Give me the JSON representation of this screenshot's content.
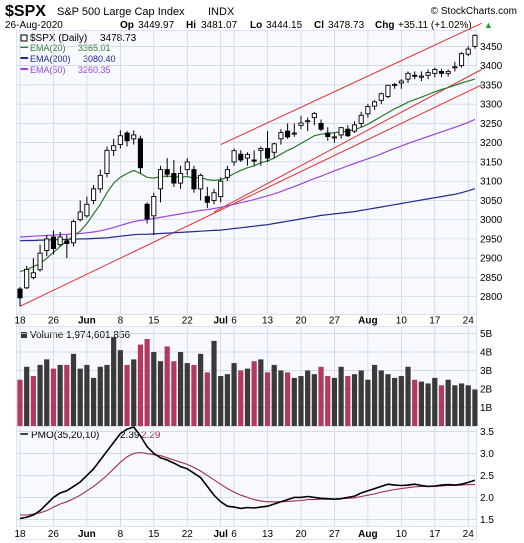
{
  "header": {
    "symbol": "$SPX",
    "name": "S&P 500 Large Cap Index",
    "exchange": "INDX",
    "date": "26-Aug-2020",
    "op_label": "Op",
    "op": "3449.97",
    "hi_label": "Hi",
    "hi": "3481.07",
    "lo_label": "Lo",
    "lo": "3444.15",
    "cl_label": "Cl",
    "cl": "3478.73",
    "chg_label": "Chg",
    "chg": "+35.11 (+1.02%)",
    "chg_arrow": "▲",
    "watermark": "© StockCharts.com"
  },
  "colors": {
    "background": "#ffffff",
    "panel_bg": "#f7f9ff",
    "frame": "#d9e3f3",
    "grid": "#c9d3e0",
    "up_candle": "#ffffff",
    "down_candle": "#000000",
    "ema20": "#2b7a2b",
    "ema200": "#1f2a8a",
    "ema50": "#9b46d6",
    "channel": "#e03030",
    "vol_up": "#3a3a3a",
    "vol_down": "#b33a5e",
    "pmo": "#000000",
    "pmo_signal": "#a0304a"
  },
  "chart_data": [
    {
      "type": "candlestick",
      "title": "$SPX (Daily) 3478.73",
      "legend": [
        {
          "name": "$SPX (Daily)",
          "value": "3478.73"
        },
        {
          "name": "EMA(20)",
          "value": "3365.01",
          "color": "#2b7a2b"
        },
        {
          "name": "EMA(200)",
          "value": "3080.40",
          "color": "#1f2a8a"
        },
        {
          "name": "EMA(50)",
          "value": "3260.35",
          "color": "#9b46d6"
        }
      ],
      "y_ticks": [
        2800,
        2850,
        2900,
        2950,
        3000,
        3050,
        3100,
        3150,
        3200,
        3250,
        3300,
        3350,
        3400,
        3450
      ],
      "ylim": [
        2755,
        3490
      ],
      "x_ticks": [
        {
          "label": "18",
          "i": 0
        },
        {
          "label": "26",
          "i": 5
        },
        {
          "label": "Jun",
          "i": 10
        },
        {
          "label": "8",
          "i": 15
        },
        {
          "label": "15",
          "i": 20
        },
        {
          "label": "22",
          "i": 25
        },
        {
          "label": "Jul",
          "i": 30
        },
        {
          "label": "6",
          "i": 32
        },
        {
          "label": "13",
          "i": 37
        },
        {
          "label": "20",
          "i": 42
        },
        {
          "label": "27",
          "i": 47
        },
        {
          "label": "Aug",
          "i": 52
        },
        {
          "label": "10",
          "i": 57
        },
        {
          "label": "17",
          "i": 62
        },
        {
          "label": "24",
          "i": 67
        }
      ],
      "ohlc": [
        [
          2820,
          2825,
          2775,
          2797
        ],
        [
          2823,
          2880,
          2820,
          2871
        ],
        [
          2850,
          2900,
          2845,
          2862
        ],
        [
          2870,
          2935,
          2865,
          2913
        ],
        [
          2920,
          2960,
          2905,
          2950
        ],
        [
          2955,
          2972,
          2910,
          2925
        ],
        [
          2935,
          2968,
          2930,
          2955
        ],
        [
          2945,
          2960,
          2900,
          2938
        ],
        [
          2940,
          3000,
          2930,
          2995
        ],
        [
          3000,
          3050,
          2995,
          3020
        ],
        [
          3010,
          3060,
          3005,
          3040
        ],
        [
          3050,
          3090,
          3040,
          3080
        ],
        [
          3080,
          3130,
          3070,
          3115
        ],
        [
          3120,
          3190,
          3110,
          3180
        ],
        [
          3180,
          3210,
          3165,
          3192
        ],
        [
          3195,
          3232,
          3185,
          3218
        ],
        [
          3225,
          3230,
          3190,
          3205
        ],
        [
          3210,
          3232,
          3195,
          3220
        ],
        [
          3210,
          3218,
          3120,
          3135
        ],
        [
          3040,
          3045,
          2990,
          3002
        ],
        [
          3010,
          3070,
          2960,
          3060
        ],
        [
          3080,
          3140,
          3045,
          3130
        ],
        [
          3130,
          3160,
          3110,
          3118
        ],
        [
          3120,
          3155,
          3085,
          3095
        ],
        [
          3095,
          3140,
          3080,
          3120
        ],
        [
          3130,
          3160,
          3115,
          3150
        ],
        [
          3130,
          3140,
          3070,
          3080
        ],
        [
          3080,
          3120,
          3050,
          3115
        ],
        [
          3060,
          3085,
          3030,
          3045
        ],
        [
          3050,
          3080,
          3040,
          3070
        ],
        [
          3060,
          3110,
          3045,
          3100
        ],
        [
          3110,
          3140,
          3100,
          3130
        ],
        [
          3150,
          3185,
          3140,
          3179
        ],
        [
          3170,
          3180,
          3150,
          3155
        ],
        [
          3160,
          3175,
          3140,
          3169
        ],
        [
          3155,
          3180,
          3140,
          3152
        ],
        [
          3180,
          3190,
          3140,
          3185
        ],
        [
          3185,
          3230,
          3150,
          3160
        ],
        [
          3175,
          3200,
          3160,
          3197
        ],
        [
          3210,
          3235,
          3195,
          3226
        ],
        [
          3230,
          3250,
          3210,
          3215
        ],
        [
          3225,
          3250,
          3215,
          3225
        ],
        [
          3245,
          3270,
          3235,
          3251
        ],
        [
          3255,
          3265,
          3230,
          3257
        ],
        [
          3265,
          3280,
          3245,
          3276
        ],
        [
          3250,
          3260,
          3230,
          3235
        ],
        [
          3225,
          3240,
          3205,
          3216
        ],
        [
          3215,
          3225,
          3200,
          3215
        ],
        [
          3220,
          3240,
          3210,
          3239
        ],
        [
          3235,
          3245,
          3215,
          3218
        ],
        [
          3230,
          3255,
          3225,
          3246
        ],
        [
          3250,
          3280,
          3240,
          3271
        ],
        [
          3275,
          3300,
          3265,
          3294
        ],
        [
          3295,
          3310,
          3285,
          3306
        ],
        [
          3310,
          3330,
          3300,
          3327
        ],
        [
          3320,
          3350,
          3315,
          3349
        ],
        [
          3350,
          3355,
          3340,
          3351
        ],
        [
          3355,
          3365,
          3340,
          3360
        ],
        [
          3365,
          3385,
          3355,
          3380
        ],
        [
          3375,
          3385,
          3365,
          3373
        ],
        [
          3370,
          3385,
          3360,
          3373
        ],
        [
          3375,
          3390,
          3365,
          3382
        ],
        [
          3380,
          3395,
          3370,
          3390
        ],
        [
          3385,
          3392,
          3370,
          3380
        ],
        [
          3380,
          3390,
          3372,
          3385
        ],
        [
          3395,
          3410,
          3385,
          3397
        ],
        [
          3400,
          3435,
          3395,
          3431
        ],
        [
          3430,
          3450,
          3425,
          3443
        ],
        [
          3449.97,
          3481.07,
          3444.15,
          3478.73
        ]
      ],
      "ema20": [
        2865,
        2870,
        2878,
        2886,
        2900,
        2915,
        2930,
        2945,
        2958,
        2970,
        2990,
        3015,
        3040,
        3070,
        3095,
        3110,
        3120,
        3128,
        3120,
        3110,
        3108,
        3112,
        3113,
        3112,
        3110,
        3112,
        3108,
        3110,
        3104,
        3102,
        3104,
        3110,
        3120,
        3128,
        3135,
        3140,
        3148,
        3152,
        3160,
        3170,
        3180,
        3188,
        3198,
        3208,
        3218,
        3222,
        3224,
        3226,
        3228,
        3230,
        3234,
        3240,
        3248,
        3258,
        3268,
        3278,
        3288,
        3296,
        3305,
        3312,
        3318,
        3325,
        3332,
        3338,
        3343,
        3349,
        3355,
        3360,
        3365.01
      ],
      "ema200": [
        2945,
        2946,
        2946,
        2947,
        2947,
        2948,
        2948,
        2949,
        2949,
        2950,
        2950,
        2951,
        2952,
        2953,
        2955,
        2957,
        2959,
        2961,
        2962,
        2962,
        2963,
        2964,
        2965,
        2966,
        2967,
        2968,
        2969,
        2970,
        2971,
        2972,
        2973,
        2975,
        2977,
        2979,
        2981,
        2983,
        2985,
        2987,
        2990,
        2993,
        2996,
        2999,
        3002,
        3005,
        3008,
        3011,
        3013,
        3015,
        3017,
        3019,
        3021,
        3024,
        3027,
        3030,
        3033,
        3036,
        3039,
        3042,
        3045,
        3048,
        3051,
        3054,
        3057,
        3060,
        3063,
        3066,
        3070,
        3075,
        3080.4
      ],
      "ema50": [
        2955,
        2956,
        2957,
        2958,
        2959,
        2960,
        2961,
        2962,
        2963,
        2964,
        2966,
        2968,
        2971,
        2975,
        2980,
        2985,
        2990,
        2995,
        2998,
        3000,
        3003,
        3006,
        3009,
        3012,
        3015,
        3018,
        3021,
        3024,
        3026,
        3029,
        3032,
        3036,
        3040,
        3044,
        3048,
        3052,
        3057,
        3062,
        3067,
        3073,
        3080,
        3086,
        3093,
        3100,
        3107,
        3113,
        3120,
        3127,
        3133,
        3140,
        3146,
        3152,
        3158,
        3164,
        3171,
        3178,
        3185,
        3191,
        3198,
        3204,
        3210,
        3216,
        3222,
        3228,
        3234,
        3240,
        3246,
        3253,
        3260.35
      ],
      "channel_lines": [
        {
          "start": [
            0,
            2775
          ],
          "end": [
            69,
            3350
          ]
        },
        {
          "start": [
            29,
            3020
          ],
          "end": [
            69,
            3390
          ]
        },
        {
          "start": [
            30,
            3195
          ],
          "end": [
            69,
            3510
          ]
        }
      ]
    },
    {
      "type": "bar",
      "title": "Volume 1,974,601,856",
      "y_ticks": [
        {
          "v": 1,
          "l": "1B"
        },
        {
          "v": 2,
          "l": "2B"
        },
        {
          "v": 3,
          "l": "3B"
        },
        {
          "v": 4,
          "l": "4B"
        },
        {
          "v": 5,
          "l": "5B"
        }
      ],
      "ylim": [
        0,
        5.35
      ],
      "volume_billions": [
        2.5,
        3.2,
        2.7,
        3.3,
        3.6,
        3.1,
        3.3,
        3.3,
        3.9,
        3.1,
        3.3,
        2.6,
        3.2,
        3.3,
        4.8,
        4.1,
        3.3,
        3.6,
        4.4,
        4.7,
        4.0,
        3.5,
        4.3,
        3.5,
        4.0,
        3.4,
        3.3,
        3.9,
        2.9,
        4.6,
        2.7,
        2.8,
        3.4,
        3.0,
        3.1,
        3.5,
        3.6,
        2.9,
        3.3,
        3.0,
        2.9,
        2.6,
        2.7,
        3.0,
        2.8,
        3.2,
        2.7,
        2.6,
        3.2,
        2.7,
        2.8,
        3.0,
        2.5,
        3.3,
        3.0,
        2.8,
        2.6,
        2.7,
        3.2,
        2.5,
        2.4,
        2.3,
        2.6,
        2.2,
        2.5,
        2.2,
        2.3,
        2.2,
        1.97
      ],
      "up_days": [
        1,
        3,
        4,
        6,
        8,
        9,
        10,
        11,
        12,
        13,
        14,
        15,
        17,
        20,
        21,
        24,
        25,
        27,
        29,
        30,
        31,
        32,
        34,
        36,
        38,
        39,
        41,
        42,
        43,
        44,
        47,
        48,
        50,
        51,
        52,
        53,
        54,
        55,
        56,
        57,
        58,
        60,
        61,
        62,
        64,
        65,
        66,
        67,
        68
      ]
    },
    {
      "type": "line",
      "title": "PMO(35,20,10) 2.39, 2.29",
      "y_ticks": [
        1.5,
        2.0,
        2.5,
        3.0,
        3.5
      ],
      "ylim": [
        1.35,
        3.6
      ],
      "series": [
        {
          "name": "PMO(35,20,10)",
          "value": "2.39",
          "values": [
            1.52,
            1.55,
            1.6,
            1.7,
            1.85,
            2.0,
            2.1,
            2.15,
            2.25,
            2.35,
            2.5,
            2.65,
            2.85,
            3.05,
            3.25,
            3.45,
            3.55,
            3.6,
            3.4,
            3.15,
            3.0,
            2.9,
            2.85,
            2.78,
            2.7,
            2.65,
            2.55,
            2.45,
            2.25,
            2.05,
            1.9,
            1.8,
            1.78,
            1.75,
            1.77,
            1.76,
            1.78,
            1.8,
            1.85,
            1.9,
            1.95,
            2.0,
            2.0,
            2.02,
            2.0,
            1.98,
            1.97,
            1.96,
            1.97,
            2.0,
            2.03,
            2.1,
            2.15,
            2.2,
            2.25,
            2.3,
            2.28,
            2.27,
            2.28,
            2.3,
            2.27,
            2.25,
            2.26,
            2.28,
            2.29,
            2.28,
            2.3,
            2.34,
            2.39
          ]
        },
        {
          "name": "Signal",
          "value": "2.29",
          "values": [
            1.6,
            1.6,
            1.62,
            1.65,
            1.7,
            1.78,
            1.85,
            1.9,
            1.97,
            2.05,
            2.15,
            2.25,
            2.37,
            2.5,
            2.65,
            2.8,
            2.92,
            3.0,
            3.02,
            3.0,
            2.97,
            2.95,
            2.9,
            2.85,
            2.8,
            2.75,
            2.68,
            2.6,
            2.5,
            2.4,
            2.3,
            2.2,
            2.12,
            2.05,
            2.0,
            1.95,
            1.92,
            1.9,
            1.9,
            1.9,
            1.91,
            1.92,
            1.93,
            1.95,
            1.95,
            1.96,
            1.96,
            1.96,
            1.97,
            1.98,
            1.99,
            2.02,
            2.05,
            2.08,
            2.12,
            2.15,
            2.18,
            2.2,
            2.22,
            2.24,
            2.25,
            2.25,
            2.25,
            2.26,
            2.27,
            2.27,
            2.28,
            2.29,
            2.29
          ]
        }
      ]
    }
  ]
}
